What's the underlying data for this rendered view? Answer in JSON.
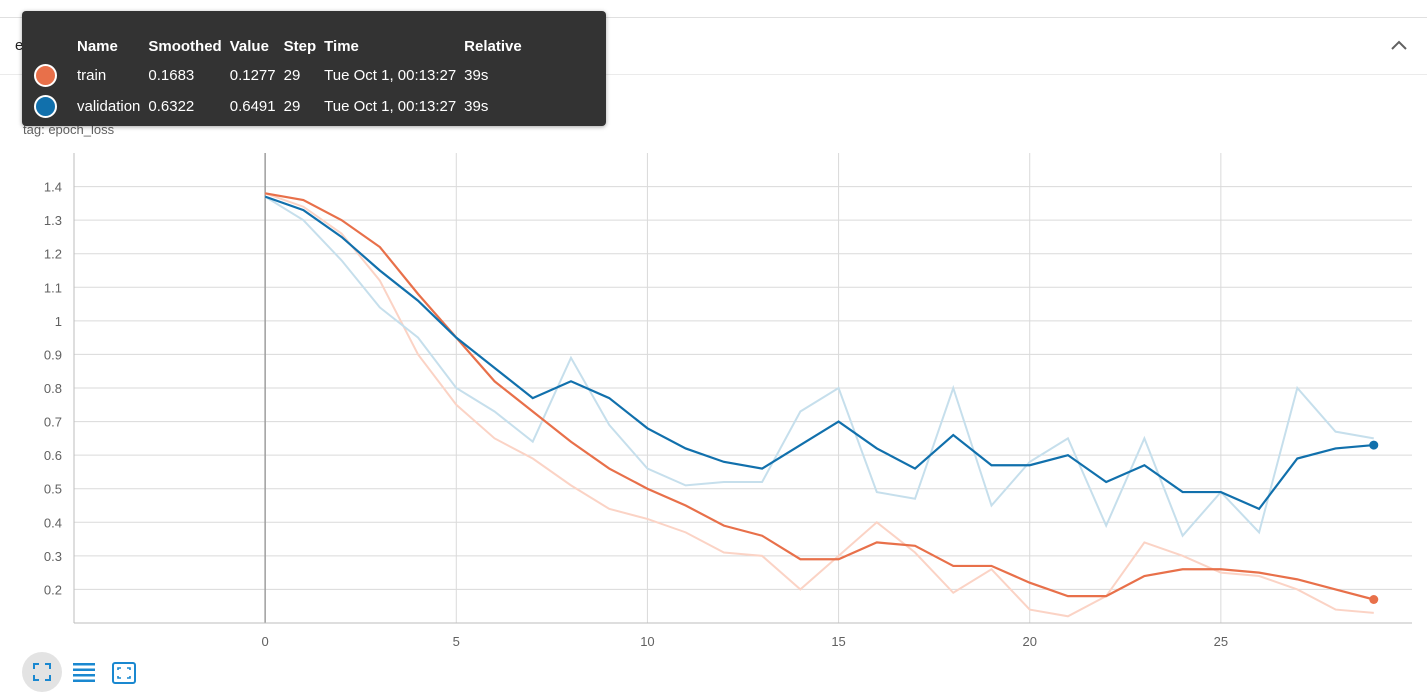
{
  "card": {
    "title": "epoch_loss"
  },
  "chart_header": {
    "title": "epoch_loss",
    "tag_label": "tag:",
    "tag_value": "epoch_loss"
  },
  "tooltip": {
    "headers": [
      "Name",
      "Smoothed",
      "Value",
      "Step",
      "Time",
      "Relative"
    ],
    "rows": [
      {
        "name": "train",
        "smoothed": "0.1683",
        "value": "0.1277",
        "step": "29",
        "time": "Tue Oct 1, 00:13:27",
        "relative": "39s",
        "color": "#e8704a"
      },
      {
        "name": "validation",
        "smoothed": "0.6322",
        "value": "0.6491",
        "step": "29",
        "time": "Tue Oct 1, 00:13:27",
        "relative": "39s",
        "color": "#1170ac"
      }
    ]
  },
  "toolbar": {
    "buttons": [
      "fit-domain-icon",
      "toggle-log-scale-icon",
      "fit-to-data-icon"
    ],
    "accent": "#1a88d0"
  },
  "chart_data": {
    "type": "line",
    "xlim": [
      -5,
      30
    ],
    "ylim": [
      0.1,
      1.5
    ],
    "x_ticks": [
      0,
      5,
      10,
      15,
      20,
      25
    ],
    "y_ticks": [
      0.2,
      0.3,
      0.4,
      0.5,
      0.6,
      0.7,
      0.8,
      0.9,
      1,
      1.1,
      1.2,
      1.3,
      1.4
    ],
    "grid": true,
    "series": [
      {
        "name": "train",
        "color": "#e8704a",
        "raw_color": "#fbd3c5",
        "x": [
          0,
          1,
          2,
          3,
          4,
          5,
          6,
          7,
          8,
          9,
          10,
          11,
          12,
          13,
          14,
          15,
          16,
          17,
          18,
          19,
          20,
          21,
          22,
          23,
          24,
          25,
          26,
          27,
          28,
          29
        ],
        "smoothed": [
          1.38,
          1.36,
          1.3,
          1.22,
          1.08,
          0.95,
          0.82,
          0.73,
          0.64,
          0.56,
          0.5,
          0.45,
          0.39,
          0.36,
          0.29,
          0.29,
          0.34,
          0.33,
          0.27,
          0.27,
          0.22,
          0.18,
          0.18,
          0.24,
          0.26,
          0.26,
          0.25,
          0.23,
          0.2,
          0.17
        ],
        "values": [
          1.38,
          1.34,
          1.26,
          1.12,
          0.9,
          0.75,
          0.65,
          0.59,
          0.51,
          0.44,
          0.41,
          0.37,
          0.31,
          0.3,
          0.2,
          0.3,
          0.4,
          0.31,
          0.19,
          0.26,
          0.14,
          0.12,
          0.18,
          0.34,
          0.3,
          0.25,
          0.24,
          0.2,
          0.14,
          0.13
        ]
      },
      {
        "name": "validation",
        "color": "#1170ac",
        "raw_color": "#c6dfec",
        "x": [
          0,
          1,
          2,
          3,
          4,
          5,
          6,
          7,
          8,
          9,
          10,
          11,
          12,
          13,
          14,
          15,
          16,
          17,
          18,
          19,
          20,
          21,
          22,
          23,
          24,
          25,
          26,
          27,
          28,
          29
        ],
        "smoothed": [
          1.37,
          1.33,
          1.25,
          1.15,
          1.06,
          0.95,
          0.86,
          0.77,
          0.82,
          0.77,
          0.68,
          0.62,
          0.58,
          0.56,
          0.63,
          0.7,
          0.62,
          0.56,
          0.66,
          0.57,
          0.57,
          0.6,
          0.52,
          0.57,
          0.49,
          0.49,
          0.44,
          0.59,
          0.62,
          0.63
        ],
        "values": [
          1.37,
          1.3,
          1.18,
          1.04,
          0.95,
          0.8,
          0.73,
          0.64,
          0.89,
          0.69,
          0.56,
          0.51,
          0.52,
          0.52,
          0.73,
          0.8,
          0.49,
          0.47,
          0.8,
          0.45,
          0.58,
          0.65,
          0.39,
          0.65,
          0.36,
          0.49,
          0.37,
          0.8,
          0.67,
          0.65
        ]
      }
    ]
  }
}
